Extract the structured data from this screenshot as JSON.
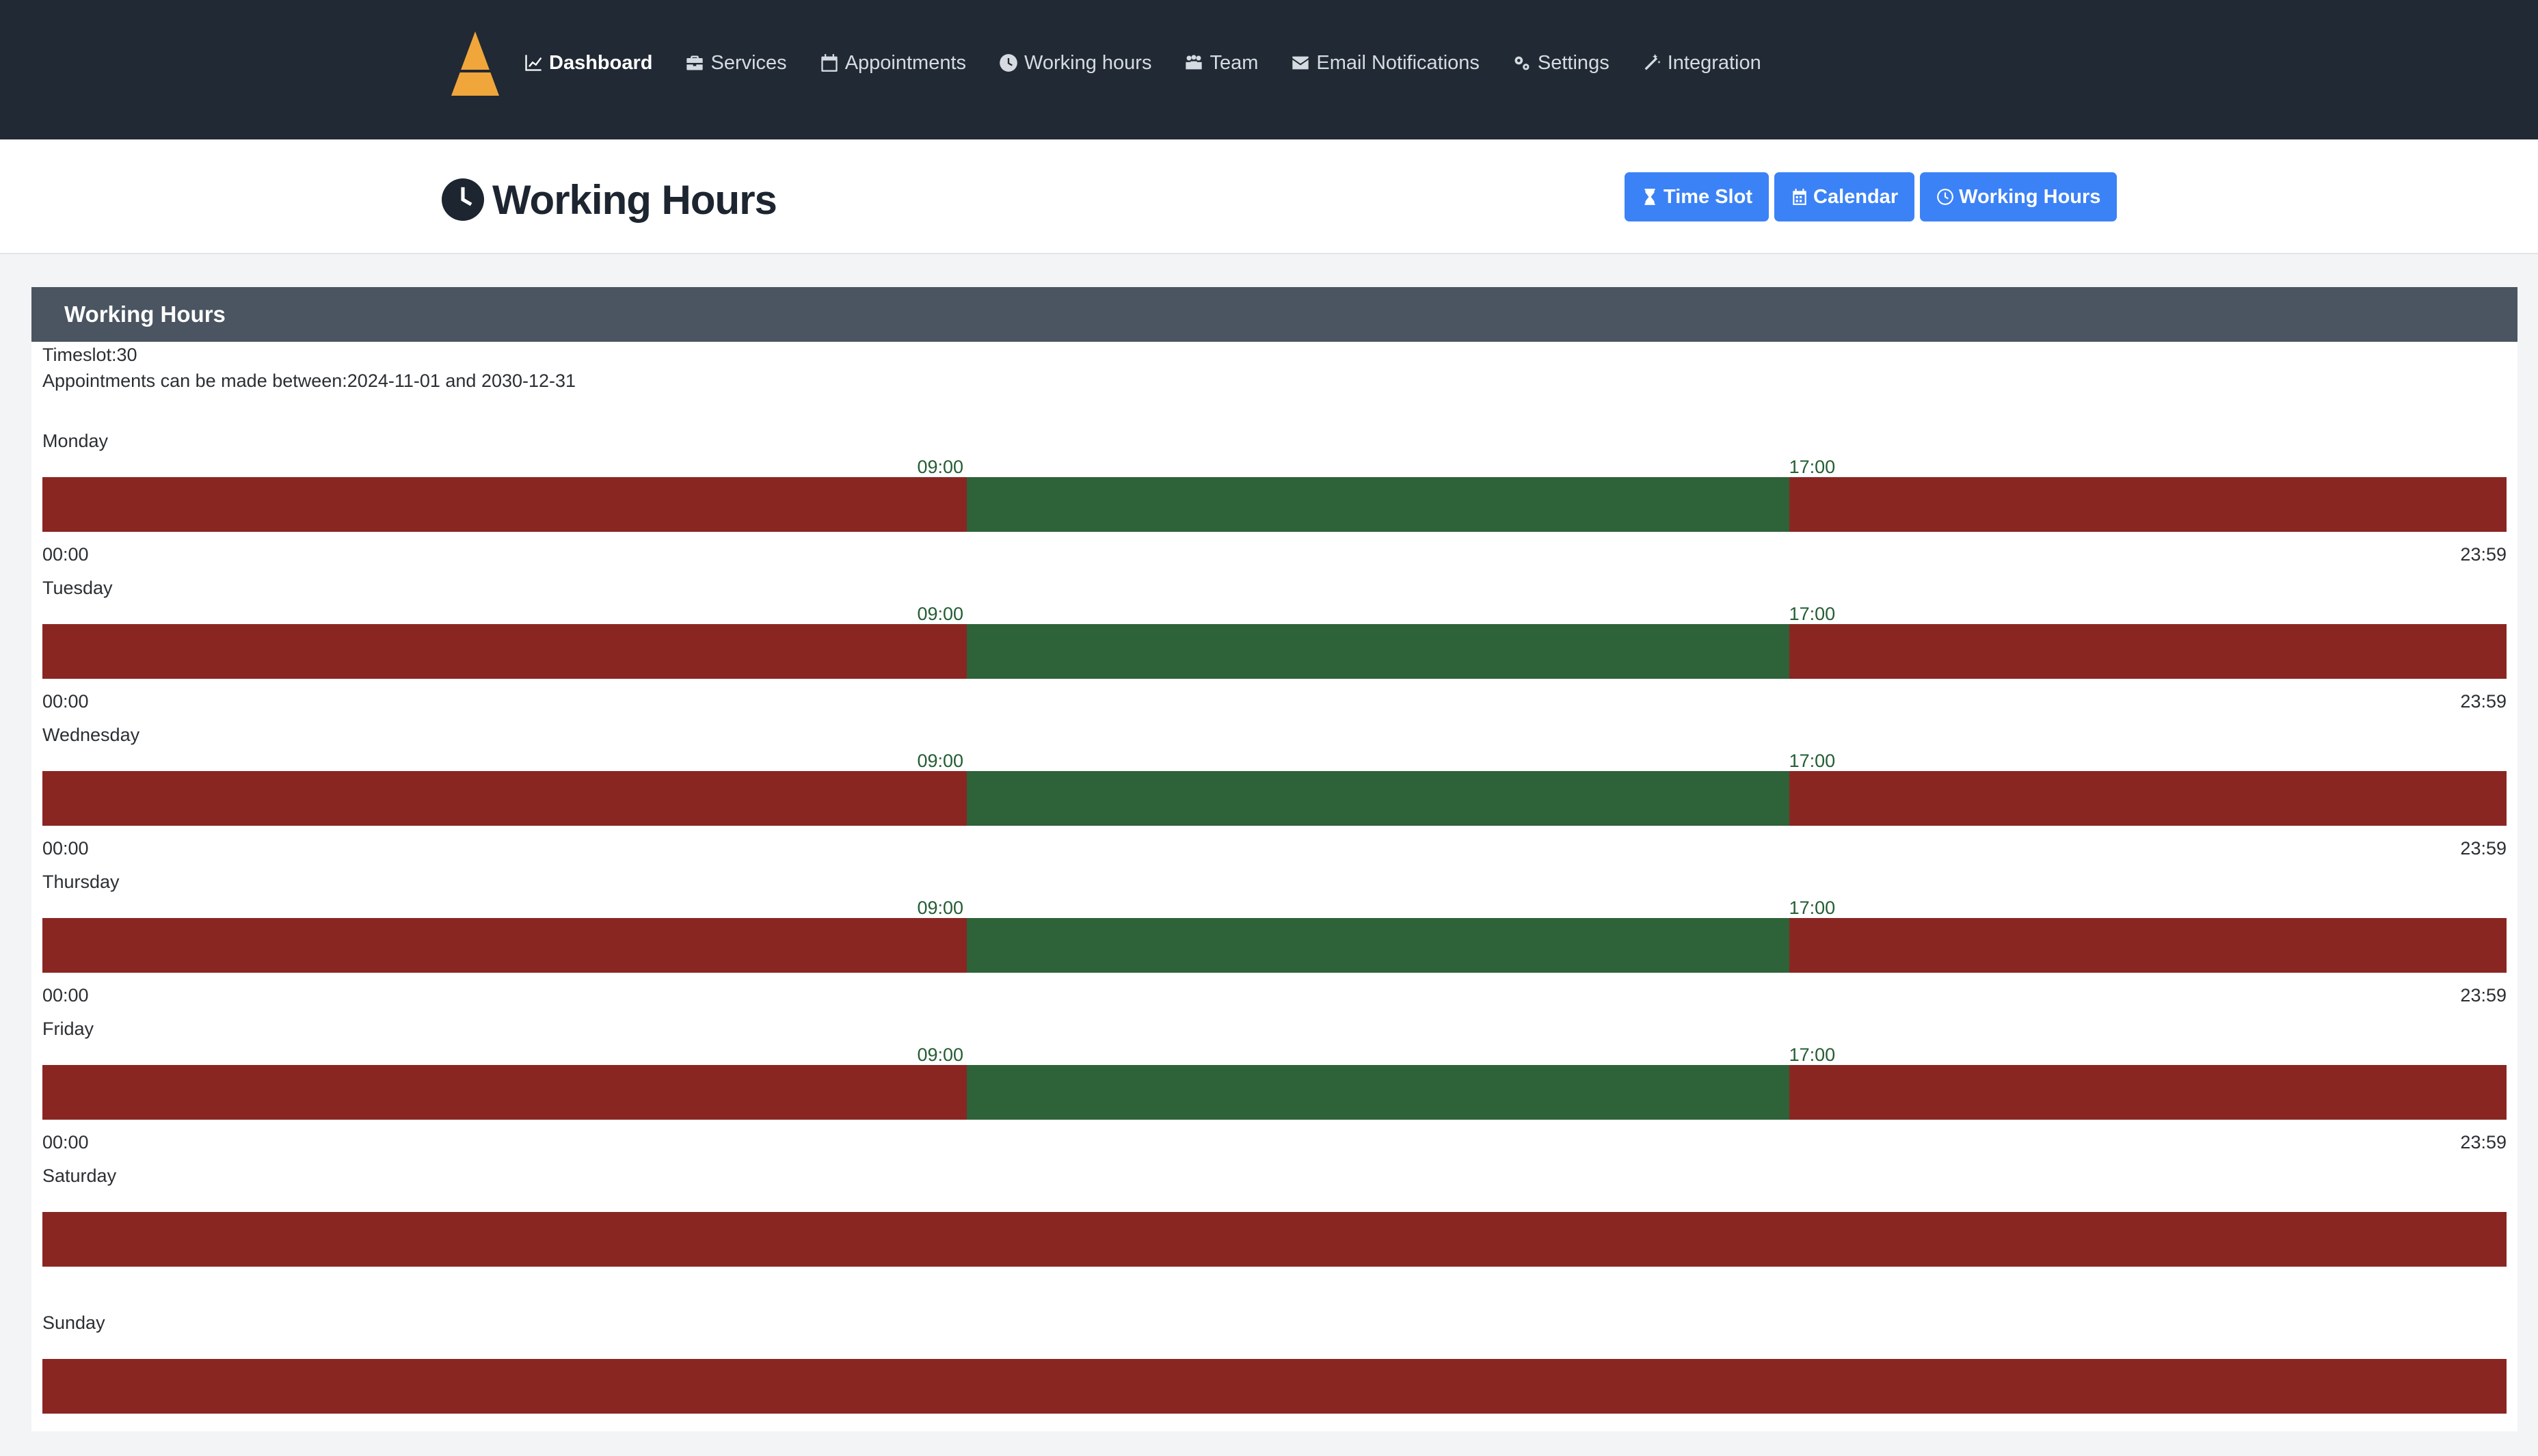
{
  "nav": {
    "items": [
      {
        "label": "Dashboard",
        "icon": "chart-line-icon",
        "active": true
      },
      {
        "label": "Services",
        "icon": "briefcase-icon"
      },
      {
        "label": "Appointments",
        "icon": "calendar-icon"
      },
      {
        "label": "Working hours",
        "icon": "clock-icon"
      },
      {
        "label": "Team",
        "icon": "people-icon"
      },
      {
        "label": "Email Notifications",
        "icon": "envelope-icon"
      },
      {
        "label": "Settings",
        "icon": "gears-icon"
      },
      {
        "label": "Integration",
        "icon": "magic-wand-icon"
      }
    ]
  },
  "header": {
    "title": "Working Hours",
    "buttons": [
      {
        "label": "Time Slot",
        "icon": "hourglass-icon"
      },
      {
        "label": "Calendar",
        "icon": "calendar-icon"
      },
      {
        "label": "Working Hours",
        "icon": "clock-icon"
      }
    ]
  },
  "card": {
    "title": "Working Hours",
    "timeslot": "Timeslot:30",
    "range": "Appointments can be made between:2024-11-01 and 2030-12-31",
    "axis_start": "00:00",
    "axis_end": "23:59"
  },
  "days": [
    {
      "name": "Monday",
      "start": "09:00",
      "end": "17:00",
      "open": true
    },
    {
      "name": "Tuesday",
      "start": "09:00",
      "end": "17:00",
      "open": true
    },
    {
      "name": "Wednesday",
      "start": "09:00",
      "end": "17:00",
      "open": true
    },
    {
      "name": "Thursday",
      "start": "09:00",
      "end": "17:00",
      "open": true
    },
    {
      "name": "Friday",
      "start": "09:00",
      "end": "17:00",
      "open": true
    },
    {
      "name": "Saturday",
      "open": false
    },
    {
      "name": "Sunday",
      "open": false
    }
  ],
  "colors": {
    "navbar": "#212934",
    "closed": "#8a2622",
    "open": "#2e6239",
    "button": "#3b82f6",
    "card_header": "#4a5561",
    "logo": "#f0a63a"
  }
}
